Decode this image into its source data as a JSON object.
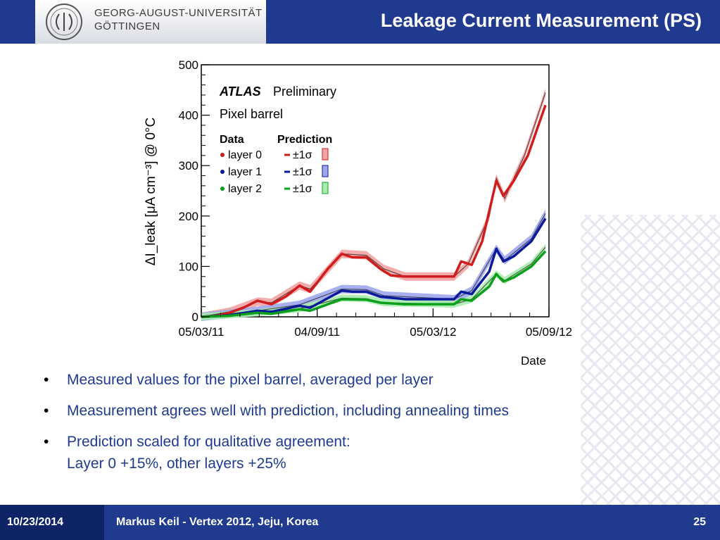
{
  "header": {
    "university_line1": "GEORG-AUGUST-UNIVERSITÄT",
    "university_line2": "GÖTTINGEN",
    "slide_title": "Leakage Current Measurement (PS)",
    "bar_color": "#1f3a8f"
  },
  "bullets": [
    {
      "lines": [
        "Measured values for the pixel barrel, averaged per layer"
      ]
    },
    {
      "lines": [
        "Measurement agrees well with prediction, including annealing times"
      ]
    },
    {
      "lines": [
        "Prediction scaled for qualitative agreement:",
        "Layer 0 +15%, other layers +25%"
      ]
    }
  ],
  "footer": {
    "date": "10/23/2014",
    "presenter": "Markus Keil - Vertex 2012, Jeju, Korea",
    "page": "25"
  },
  "chart_data": {
    "type": "line",
    "ylabel": "ΔI_leak [μA cm⁻³] @ 0°C",
    "xlabel": "Date",
    "x_ticks": [
      "05/03/11",
      "04/09/11",
      "05/03/12",
      "05/09/12"
    ],
    "y_ticks": [
      "0",
      "100",
      "200",
      "300",
      "400",
      "500"
    ],
    "ylim": [
      0,
      500
    ],
    "atlas_label": "ATLAS",
    "atlas_suffix": "Preliminary",
    "subtitle": "Pixel barrel",
    "legend": {
      "data_header": "Data",
      "prediction_header": "Prediction",
      "entries": [
        {
          "label": "layer 0",
          "sigma": "±1σ"
        },
        {
          "label": "layer 1",
          "sigma": "±1σ"
        },
        {
          "label": "layer 2",
          "sigma": "±1σ"
        }
      ]
    },
    "series_colors": {
      "layer0": "#d01c1c",
      "layer1": "#0a1a9a",
      "layer2": "#0aa01c"
    },
    "band_colors": {
      "layer0": "#f2a3a3",
      "layer1": "#9fa6ec",
      "layer2": "#a8ecad"
    },
    "series": [
      {
        "key": "layer0",
        "points": [
          [
            0,
            0
          ],
          [
            20,
            2
          ],
          [
            40,
            8
          ],
          [
            60,
            18
          ],
          [
            80,
            32
          ],
          [
            100,
            25
          ],
          [
            120,
            40
          ],
          [
            140,
            62
          ],
          [
            155,
            50
          ],
          [
            180,
            95
          ],
          [
            200,
            125
          ],
          [
            215,
            118
          ],
          [
            235,
            118
          ],
          [
            255,
            95
          ],
          [
            270,
            82
          ],
          [
            290,
            80
          ],
          [
            330,
            80
          ],
          [
            360,
            80
          ],
          [
            370,
            110
          ],
          [
            385,
            103
          ],
          [
            400,
            150
          ],
          [
            420,
            270
          ],
          [
            430,
            240
          ],
          [
            445,
            270
          ],
          [
            465,
            320
          ],
          [
            480,
            380
          ],
          [
            490,
            420
          ]
        ],
        "prediction": [
          [
            0,
            0
          ],
          [
            40,
            10
          ],
          [
            80,
            30
          ],
          [
            100,
            28
          ],
          [
            140,
            62
          ],
          [
            155,
            55
          ],
          [
            200,
            125
          ],
          [
            235,
            122
          ],
          [
            260,
            95
          ],
          [
            290,
            80
          ],
          [
            360,
            80
          ],
          [
            380,
            105
          ],
          [
            410,
            200
          ],
          [
            420,
            275
          ],
          [
            432,
            235
          ],
          [
            460,
            320
          ],
          [
            490,
            445
          ]
        ],
        "band_width": 12
      },
      {
        "key": "layer1",
        "points": [
          [
            0,
            0
          ],
          [
            40,
            3
          ],
          [
            80,
            12
          ],
          [
            100,
            10
          ],
          [
            140,
            22
          ],
          [
            155,
            18
          ],
          [
            200,
            52
          ],
          [
            215,
            50
          ],
          [
            235,
            50
          ],
          [
            255,
            40
          ],
          [
            290,
            35
          ],
          [
            360,
            35
          ],
          [
            370,
            50
          ],
          [
            385,
            45
          ],
          [
            410,
            90
          ],
          [
            420,
            135
          ],
          [
            430,
            110
          ],
          [
            445,
            120
          ],
          [
            470,
            150
          ],
          [
            490,
            195
          ]
        ],
        "prediction": [
          [
            0,
            0
          ],
          [
            80,
            12
          ],
          [
            140,
            24
          ],
          [
            200,
            55
          ],
          [
            235,
            54
          ],
          [
            260,
            42
          ],
          [
            360,
            35
          ],
          [
            385,
            52
          ],
          [
            420,
            135
          ],
          [
            432,
            112
          ],
          [
            470,
            155
          ],
          [
            490,
            205
          ]
        ],
        "band_width": 12
      },
      {
        "key": "layer2",
        "points": [
          [
            0,
            0
          ],
          [
            40,
            2
          ],
          [
            80,
            8
          ],
          [
            100,
            6
          ],
          [
            140,
            15
          ],
          [
            155,
            12
          ],
          [
            200,
            35
          ],
          [
            235,
            34
          ],
          [
            255,
            28
          ],
          [
            290,
            25
          ],
          [
            360,
            25
          ],
          [
            370,
            35
          ],
          [
            385,
            32
          ],
          [
            410,
            60
          ],
          [
            420,
            85
          ],
          [
            430,
            70
          ],
          [
            445,
            78
          ],
          [
            470,
            100
          ],
          [
            490,
            130
          ]
        ],
        "prediction": [
          [
            0,
            0
          ],
          [
            80,
            8
          ],
          [
            140,
            16
          ],
          [
            200,
            37
          ],
          [
            235,
            36
          ],
          [
            260,
            28
          ],
          [
            360,
            25
          ],
          [
            385,
            35
          ],
          [
            420,
            85
          ],
          [
            432,
            72
          ],
          [
            470,
            105
          ],
          [
            490,
            138
          ]
        ],
        "band_width": 10
      }
    ]
  }
}
